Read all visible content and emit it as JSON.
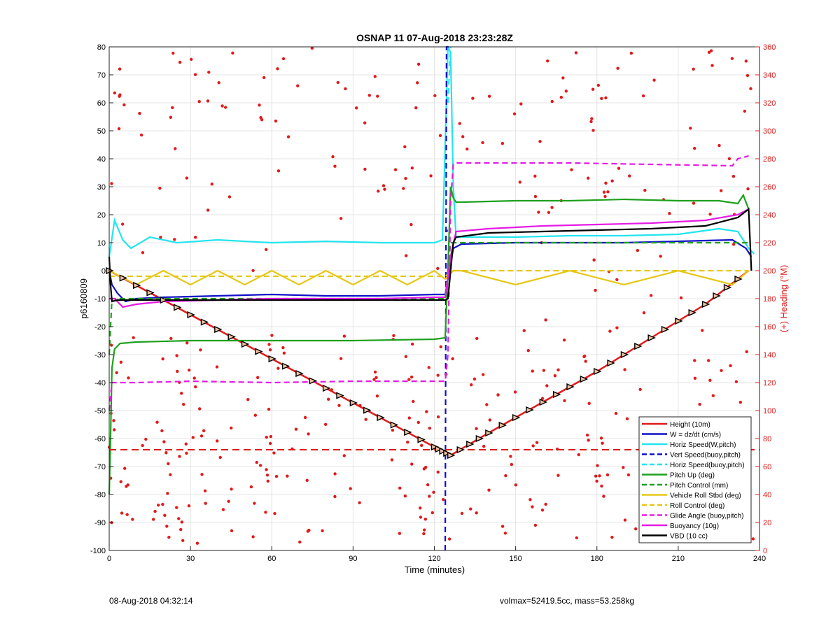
{
  "chart_data": {
    "type": "line",
    "title": "OSNAP 11 07-Aug-2018 23:23:28Z",
    "xlabel": "Time (minutes)",
    "ylabel": "p6160809",
    "y2label": "(+) Heading (°M)",
    "xlim": [
      0,
      240
    ],
    "ylim": [
      -100,
      80
    ],
    "y2lim": [
      0,
      360
    ],
    "xticks": [
      0,
      30,
      60,
      90,
      120,
      150,
      180,
      210,
      240
    ],
    "yticks": [
      -100,
      -90,
      -80,
      -70,
      -60,
      -50,
      -40,
      -30,
      -20,
      -10,
      0,
      10,
      20,
      30,
      40,
      50,
      60,
      70,
      80
    ],
    "y2ticks": [
      0,
      20,
      40,
      60,
      80,
      100,
      120,
      140,
      160,
      180,
      200,
      220,
      240,
      260,
      280,
      300,
      320,
      340,
      360
    ],
    "grid": true,
    "legend_position": "bottom-right",
    "series": [
      {
        "name": "Height (10m)",
        "color": "#e01b1b",
        "style": "solid",
        "marker": "triangle",
        "x": [
          0,
          20,
          40,
          60,
          80,
          100,
          120,
          126,
          140,
          160,
          180,
          200,
          220,
          236
        ],
        "y": [
          0,
          -10.5,
          -21,
          -31.5,
          -42,
          -52.5,
          -63,
          -66,
          -58,
          -47,
          -36,
          -24,
          -12,
          0
        ]
      },
      {
        "name": "W = dz/dt (cm/s)",
        "color": "#1010c8",
        "style": "solid",
        "x": [
          0,
          1,
          3,
          6,
          10,
          20,
          40,
          60,
          80,
          100,
          120,
          124,
          127,
          130,
          150,
          170,
          190,
          210,
          230,
          235,
          237
        ],
        "y": [
          0,
          -5,
          -8,
          -11,
          -10,
          -9.5,
          -9,
          -8.5,
          -9,
          -9,
          -8.5,
          -8.5,
          8,
          9.5,
          10,
          10,
          10,
          10.5,
          11,
          8,
          5
        ]
      },
      {
        "name": "Horiz Speed(W,pitch)",
        "color": "#22e5ee",
        "style": "solid",
        "x": [
          0,
          2,
          5,
          8,
          15,
          25,
          40,
          60,
          80,
          100,
          120,
          123,
          124,
          125,
          126,
          127,
          128,
          132,
          150,
          170,
          190,
          210,
          225,
          232,
          236,
          238
        ],
        "y": [
          5,
          18,
          11,
          8,
          12,
          10,
          11,
          10,
          10.5,
          10,
          10,
          11,
          45,
          80,
          78,
          30,
          12,
          12,
          12,
          12.5,
          12.5,
          13,
          15,
          14,
          8,
          6
        ]
      },
      {
        "name": "Vert Speed(buoy,pitch)",
        "color": "#1010c8",
        "style": "dashed",
        "x": [
          124,
          124.5,
          126
        ],
        "y": [
          -100,
          80,
          80
        ]
      },
      {
        "name": "Horiz Speed(buoy,pitch)",
        "color": "#22e5ee",
        "style": "dashed",
        "x": [
          125,
          126
        ],
        "y": [
          60,
          80
        ]
      },
      {
        "name": "Pitch Up (deg)",
        "color": "#1ea01e",
        "style": "solid",
        "x": [
          0,
          0.5,
          1,
          2,
          4,
          10,
          30,
          60,
          90,
          120,
          124,
          125,
          126,
          127,
          128,
          130,
          150,
          170,
          190,
          210,
          225,
          232,
          234,
          236
        ],
        "y": [
          -80,
          -60,
          -35,
          -28,
          -26,
          -25.5,
          -25,
          -25,
          -25,
          -24.5,
          -24,
          0,
          30,
          26,
          24.5,
          24.5,
          25,
          25,
          25.5,
          25,
          25,
          24,
          27,
          22
        ]
      },
      {
        "name": "Pitch Control (mm)",
        "color": "#1ea01e",
        "style": "dashed",
        "x": [
          0,
          1,
          2,
          20,
          60,
          100,
          124,
          126,
          128,
          160,
          200,
          236
        ],
        "y": [
          -30,
          -10,
          -10,
          -10,
          -10,
          -10,
          -10,
          10,
          10,
          10,
          10,
          10
        ]
      },
      {
        "name": "Vehicle Roll Stbd (deg)",
        "color": "#e5c817",
        "style": "solid",
        "x": [
          0,
          10,
          20,
          30,
          40,
          50,
          60,
          70,
          80,
          90,
          100,
          110,
          120,
          124,
          127,
          130,
          150,
          170,
          190,
          210,
          230,
          236
        ],
        "y": [
          0,
          -5,
          0,
          -5,
          0,
          -5,
          0,
          -5,
          0,
          -5,
          0,
          -5,
          0,
          -3,
          0,
          0,
          -5,
          0,
          -5,
          0,
          -5,
          0
        ]
      },
      {
        "name": "Roll Control (deg)",
        "color": "#e5c817",
        "style": "dashed",
        "x": [
          0,
          20,
          60,
          100,
          124,
          127,
          160,
          200,
          236
        ],
        "y": [
          -2,
          -2,
          -2,
          -2,
          -2,
          0,
          0,
          0,
          0
        ]
      },
      {
        "name": "Glide Angle (buoy,pitch)",
        "color": "#e51be5",
        "style": "dashed",
        "x": [
          0,
          1,
          10,
          30,
          60,
          90,
          120,
          124,
          125,
          126,
          127,
          128,
          140,
          170,
          200,
          230,
          232,
          236
        ],
        "y": [
          -50,
          -40,
          -40,
          -39.5,
          -40,
          -39.5,
          -39.5,
          -39.5,
          -30,
          25,
          38,
          38.5,
          38.5,
          38.5,
          38,
          37.5,
          40,
          41
        ]
      },
      {
        "name": "Buoyancy (10g)",
        "color": "#e51be5",
        "style": "solid",
        "x": [
          0,
          2,
          5,
          10,
          20,
          40,
          60,
          80,
          100,
          120,
          124,
          126,
          128,
          140,
          160,
          180,
          200,
          220,
          232,
          236
        ],
        "y": [
          -10,
          -10,
          -13,
          -12,
          -11,
          -10.5,
          -10,
          -10,
          -10,
          -9.5,
          -9.5,
          5,
          14,
          15,
          16,
          16.5,
          17,
          18,
          20,
          22
        ]
      },
      {
        "name": "VBD (10 cc)",
        "color": "#000000",
        "style": "solid",
        "x": [
          0,
          0.5,
          1,
          3,
          20,
          60,
          100,
          124,
          125,
          127,
          128,
          140,
          160,
          180,
          200,
          220,
          232,
          236,
          237
        ],
        "y": [
          5,
          -5,
          -11,
          -10.5,
          -10.5,
          -10.5,
          -10.5,
          -10.5,
          -10,
          10,
          12,
          13.5,
          14,
          14.5,
          15,
          16,
          19,
          22,
          0
        ]
      }
    ],
    "threshold_line": {
      "color": "#e01b1b",
      "style": "dashed",
      "y": -64
    },
    "heading_series": {
      "name": "Heading",
      "color": "#e01b1b",
      "style": "points",
      "axis": "right"
    }
  },
  "footer": {
    "left": "08-Aug-2018 04:32:14",
    "right": "volmax=52419.5cc, mass=53.258kg"
  }
}
